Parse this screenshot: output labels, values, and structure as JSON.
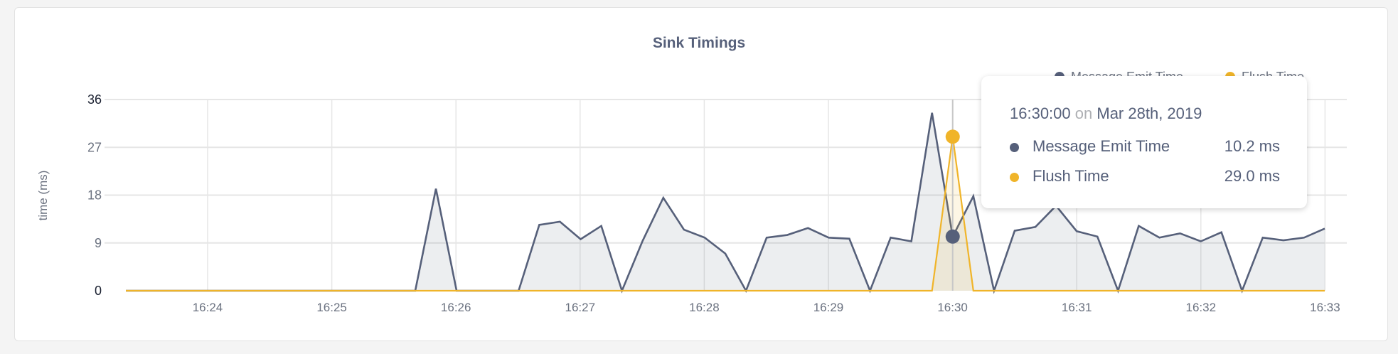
{
  "chart_data": {
    "type": "area",
    "title": "Sink Timings",
    "ylabel": "time (ms)",
    "xlabel": "",
    "ylim": [
      0,
      36
    ],
    "yticks": [
      "0",
      "9",
      "18",
      "27",
      "36"
    ],
    "xticks": [
      "16:24",
      "16:25",
      "16:26",
      "16:27",
      "16:28",
      "16:29",
      "16:30",
      "16:31",
      "16:32",
      "16:33"
    ],
    "x_range": [
      "16:23:20",
      "16:33:00"
    ],
    "x_interval_seconds": 10,
    "grid": true,
    "legend_placement": "top-right",
    "series": [
      {
        "name": "Message Emit Time",
        "color": "#56607a",
        "values": [
          0,
          0,
          0,
          0,
          0,
          0,
          0,
          0,
          0,
          0,
          0,
          0,
          0,
          0,
          0,
          19.2,
          0,
          0,
          0,
          0,
          12.4,
          13,
          9.7,
          12.2,
          0,
          9.4,
          17.5,
          11.5,
          10,
          7,
          0,
          10,
          10.5,
          11.8,
          10,
          9.8,
          0,
          10,
          9.3,
          33.5,
          10.2,
          17.8,
          0,
          11.3,
          12,
          16,
          11.2,
          10.2,
          0,
          12.2,
          10,
          10.8,
          9.3,
          11,
          0,
          10,
          9.5,
          10,
          11.7
        ]
      },
      {
        "name": "Flush Time",
        "color": "#f0b429",
        "values": [
          0,
          0,
          0,
          0,
          0,
          0,
          0,
          0,
          0,
          0,
          0,
          0,
          0,
          0,
          0,
          0,
          0,
          0,
          0,
          0,
          0,
          0,
          0,
          0,
          0,
          0,
          0,
          0,
          0,
          0,
          0,
          0,
          0,
          0,
          0,
          0,
          0,
          0,
          0,
          0,
          29.0,
          0,
          0,
          0,
          0,
          0,
          0,
          0,
          0,
          0,
          0,
          0,
          0,
          0,
          0,
          0,
          0,
          0,
          0
        ]
      }
    ]
  },
  "tooltip": {
    "time": "16:30:00",
    "on": "on",
    "date": "Mar 28th, 2019",
    "hover_index": 40,
    "rows": [
      {
        "name": "Message Emit Time",
        "value": "10.2 ms",
        "color": "#56607a"
      },
      {
        "name": "Flush Time",
        "value": "29.0 ms",
        "color": "#f0b429"
      }
    ]
  }
}
